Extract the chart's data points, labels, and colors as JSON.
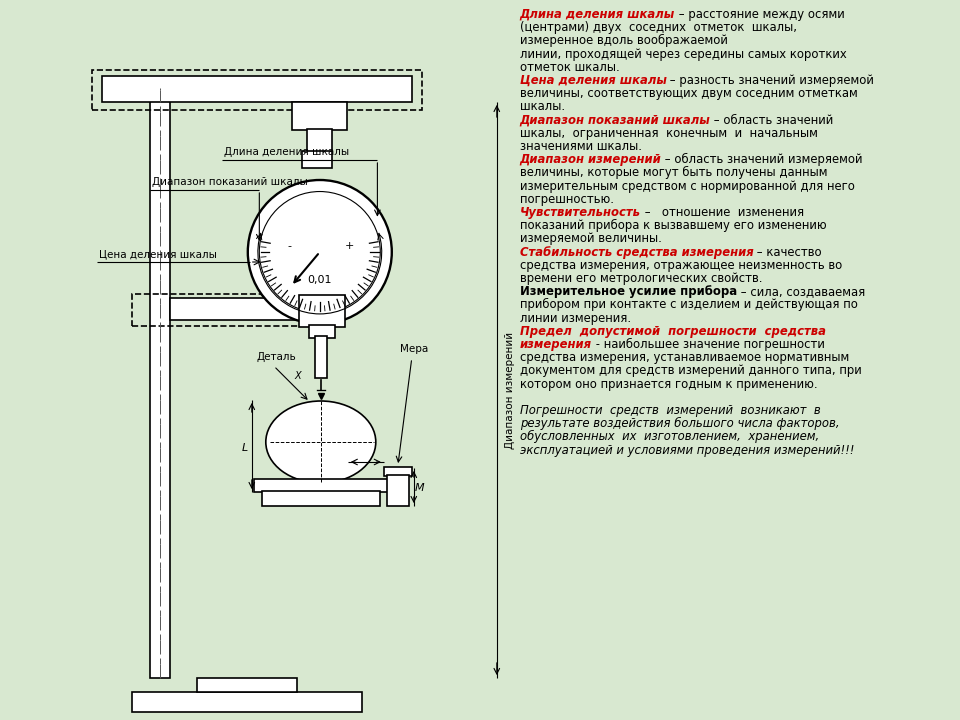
{
  "bg_left": "#d8e8d0",
  "bg_right": "#c8d8b0",
  "diagram_labels": {
    "dlina": "Длина деления шкалы",
    "diapazon_pokaz": "Диапазон показаний шкалы",
    "cena": "Цена деления шкалы",
    "detal": "Деталь",
    "mera": "Мера",
    "diapazon_izm": "Диапазон измерений",
    "value_001": "0,01",
    "minus": "-",
    "plus": "+"
  },
  "right_text_lines": [
    [
      [
        "Длина деления шкалы",
        "#cc0000",
        true,
        true
      ],
      [
        " – расстояние между осями",
        "#000000",
        false,
        false
      ]
    ],
    [
      [
        "(центрами) двух  соседних  отметок  шкалы,",
        "#000000",
        false,
        false
      ]
    ],
    [
      [
        "измеренное вдоль воображаемой",
        "#000000",
        false,
        false
      ]
    ],
    [
      [
        "линии, проходящей через середины самых коротких",
        "#000000",
        false,
        false
      ]
    ],
    [
      [
        "отметок шкалы.",
        "#000000",
        false,
        false
      ]
    ],
    [
      [
        "Цена деления шкалы",
        "#cc0000",
        true,
        true
      ],
      [
        " – разность значений измеряемой",
        "#000000",
        false,
        false
      ]
    ],
    [
      [
        "величины, соответствующих двум соседним отметкам",
        "#000000",
        false,
        false
      ]
    ],
    [
      [
        "шкалы.",
        "#000000",
        false,
        false
      ]
    ],
    [
      [
        "Диапазон показаний шкалы",
        "#cc0000",
        true,
        true
      ],
      [
        " – область значений",
        "#000000",
        false,
        false
      ]
    ],
    [
      [
        "шкалы,  ограниченная  конечным  и  начальным",
        "#000000",
        false,
        false
      ]
    ],
    [
      [
        "значениями шкалы.",
        "#000000",
        false,
        false
      ]
    ],
    [
      [
        "Диапазон измерений",
        "#cc0000",
        true,
        true
      ],
      [
        " – область значений измеряемой",
        "#000000",
        false,
        false
      ]
    ],
    [
      [
        "величины, которые могут быть получены данным",
        "#000000",
        false,
        false
      ]
    ],
    [
      [
        "измерительным средством с нормированной для него",
        "#000000",
        false,
        false
      ]
    ],
    [
      [
        "погрешностью.",
        "#000000",
        false,
        false
      ]
    ],
    [
      [
        "Чувствительность",
        "#cc0000",
        true,
        true
      ],
      [
        " –   отношение  изменения",
        "#000000",
        false,
        false
      ]
    ],
    [
      [
        "показаний прибора к вызвавшему его изменению",
        "#000000",
        false,
        false
      ]
    ],
    [
      [
        "измеряемой величины.",
        "#000000",
        false,
        false
      ]
    ],
    [
      [
        "Стабильность средства измерения",
        "#cc0000",
        true,
        true
      ],
      [
        " – качество",
        "#000000",
        false,
        false
      ]
    ],
    [
      [
        "средства измерения, отражающее неизменность во",
        "#000000",
        false,
        false
      ]
    ],
    [
      [
        "времени его метрологических свойств.",
        "#000000",
        false,
        false
      ]
    ],
    [
      [
        "Измерительное усилие прибора",
        "#000000",
        false,
        true
      ],
      [
        " – сила, создаваемая",
        "#000000",
        false,
        false
      ]
    ],
    [
      [
        "прибором при контакте с изделием и действующая по",
        "#000000",
        false,
        false
      ]
    ],
    [
      [
        "линии измерения.",
        "#000000",
        false,
        false
      ]
    ],
    [
      [
        "Предел  допустимой  погрешности  средства",
        "#cc0000",
        true,
        true
      ]
    ],
    [
      [
        "измерения",
        "#cc0000",
        true,
        true
      ],
      [
        " - наибольшее значение погрешности",
        "#000000",
        false,
        false
      ]
    ],
    [
      [
        "средства измерения, устанавливаемое нормативным",
        "#000000",
        false,
        false
      ]
    ],
    [
      [
        "документом для средств измерений данного типа, при",
        "#000000",
        false,
        false
      ]
    ],
    [
      [
        "котором оно признается годным к применению.",
        "#000000",
        false,
        false
      ]
    ],
    [
      [
        "",
        "#000000",
        false,
        false
      ]
    ],
    [
      [
        "Погрешности  средств  измерений  возникают  в",
        "#000000",
        true,
        false
      ]
    ],
    [
      [
        "результате воздействия большого числа факторов,",
        "#000000",
        true,
        false
      ]
    ],
    [
      [
        "обусловленных  их  изготовлением,  хранением,",
        "#000000",
        true,
        false
      ]
    ],
    [
      [
        "эксплуатацией и условиями проведения измерений!!!",
        "#000000",
        true,
        false
      ]
    ]
  ]
}
